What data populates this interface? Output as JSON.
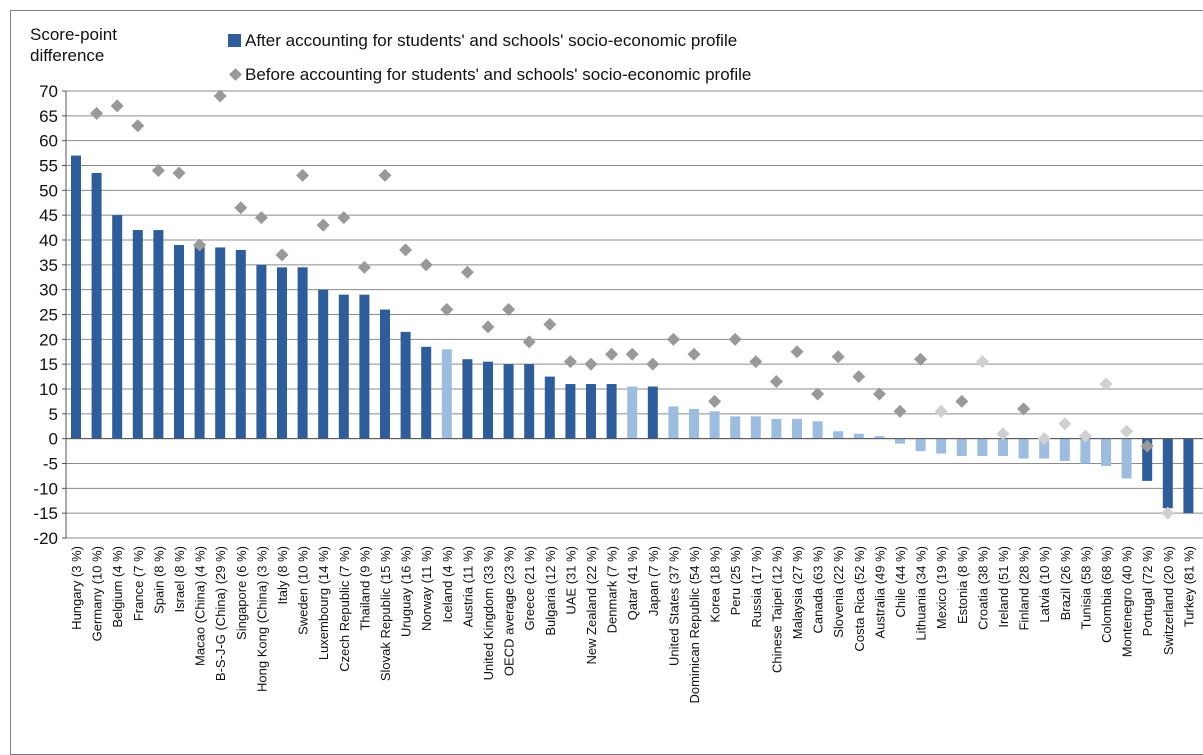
{
  "chart_data": {
    "type": "bar",
    "ylabel": "Score-point\ndifference",
    "ylim": [
      -20,
      70
    ],
    "yticks": [
      70,
      65,
      60,
      55,
      50,
      45,
      40,
      35,
      30,
      25,
      20,
      15,
      10,
      5,
      0,
      -5,
      -10,
      -15,
      -20
    ],
    "grid": true,
    "legend_position": "top",
    "colors": {
      "significant": "#2e5d9b",
      "not_significant": "#9dbde0",
      "diamond": "#999999",
      "diamond_light": "#d0d0d0"
    },
    "series": [
      {
        "name": "After accounting for students' and schools' socio-economic profile",
        "marker": "bar"
      },
      {
        "name": "Before accounting for students' and schools' socio-economic profile",
        "marker": "diamond"
      }
    ],
    "categories": [
      "Hungary (3 %)",
      "Germany (10 %)",
      "Belgium (4 %)",
      "France (7 %)",
      "Spain (8 %)",
      "Israel (8 %)",
      "Macao (China) (4 %)",
      "B-S-J-G (China) (29 %)",
      "Singapore (6 %)",
      "Hong Kong (China) (3 %)",
      "Italy (8 %)",
      "Sweden (10 %)",
      "Luxembourg (14 %)",
      "Czech Republic (7 %)",
      "Thailand (9 %)",
      "Slovak Republic (15 %)",
      "Uruguay (16 %)",
      "Norway (11 %)",
      "Iceland (4 %)",
      "Austria (11 %)",
      "United Kingdom (33 %)",
      "OECD average (23 %)",
      "Greece (21 %)",
      "Bulgaria (12 %)",
      "UAE (31 %)",
      "New Zealand (22 %)",
      "Denmark (7 %)",
      "Qatar (41 %)",
      "Japan (7 %)",
      "United States (37 %)",
      "Dominican Republic (54 %)",
      "Korea (18 %)",
      "Peru (25 %)",
      "Russia (17 %)",
      "Chinese Taipei (12 %)",
      "Malaysia (27 %)",
      "Canada (63 %)",
      "Slovenia (22 %)",
      "Costa Rica (52 %)",
      "Australia (49 %)",
      "Chile (44 %)",
      "Lithuania (34 %)",
      "Mexico (19 %)",
      "Estonia (8 %)",
      "Croatia (38 %)",
      "Ireland (51 %)",
      "Finland (28 %)",
      "Latvia (10 %)",
      "Brazil (26 %)",
      "Tunisia (58 %)",
      "Colombia (68 %)",
      "Montenegro (40 %)",
      "Portugal (72 %)",
      "Switzerland (20 %)",
      "Turkey (81 %)"
    ],
    "after": [
      57,
      53.5,
      45,
      42,
      42,
      39,
      39,
      38.5,
      38,
      35,
      34.5,
      34.5,
      30,
      29,
      29,
      26,
      21.5,
      18.5,
      18,
      16,
      15.5,
      15,
      15,
      12.5,
      11,
      11,
      11,
      10.5,
      10.5,
      6.5,
      6,
      5.5,
      4.5,
      4.5,
      4,
      4,
      3.5,
      1.5,
      1,
      0.5,
      -1,
      -2.5,
      -3,
      -3.5,
      -3.5,
      -3.5,
      -4,
      -4,
      -4.5,
      -5,
      -5.5,
      -8,
      -8.5,
      -14,
      -15
    ],
    "before": [
      null,
      65.5,
      67,
      63,
      54,
      53.5,
      39,
      69,
      46.5,
      44.5,
      37,
      53,
      43,
      44.5,
      34.5,
      53,
      38,
      35,
      26,
      33.5,
      22.5,
      26,
      19.5,
      23,
      15.5,
      15,
      17,
      17,
      15,
      20,
      17,
      7.5,
      20,
      15.5,
      11.5,
      17.5,
      9,
      16.5,
      12.5,
      9,
      5.5,
      16,
      5.5,
      7.5,
      15.5,
      1,
      6,
      0,
      3,
      0.5,
      11,
      1.5,
      -1.5,
      -15,
      null
    ],
    "after_significant": [
      true,
      true,
      true,
      true,
      true,
      true,
      true,
      true,
      true,
      true,
      true,
      true,
      true,
      true,
      true,
      true,
      true,
      true,
      false,
      true,
      true,
      true,
      true,
      true,
      true,
      true,
      true,
      false,
      true,
      false,
      false,
      false,
      false,
      false,
      false,
      false,
      false,
      false,
      false,
      false,
      false,
      false,
      false,
      false,
      false,
      false,
      false,
      false,
      false,
      false,
      false,
      false,
      true,
      true,
      true
    ],
    "before_significant": [
      true,
      true,
      true,
      true,
      true,
      true,
      true,
      true,
      true,
      true,
      true,
      true,
      true,
      true,
      true,
      true,
      true,
      true,
      true,
      true,
      true,
      true,
      true,
      true,
      true,
      true,
      true,
      true,
      true,
      true,
      true,
      true,
      true,
      true,
      true,
      true,
      true,
      true,
      true,
      true,
      true,
      true,
      false,
      true,
      false,
      false,
      true,
      false,
      false,
      false,
      false,
      false,
      true,
      false,
      true
    ]
  }
}
